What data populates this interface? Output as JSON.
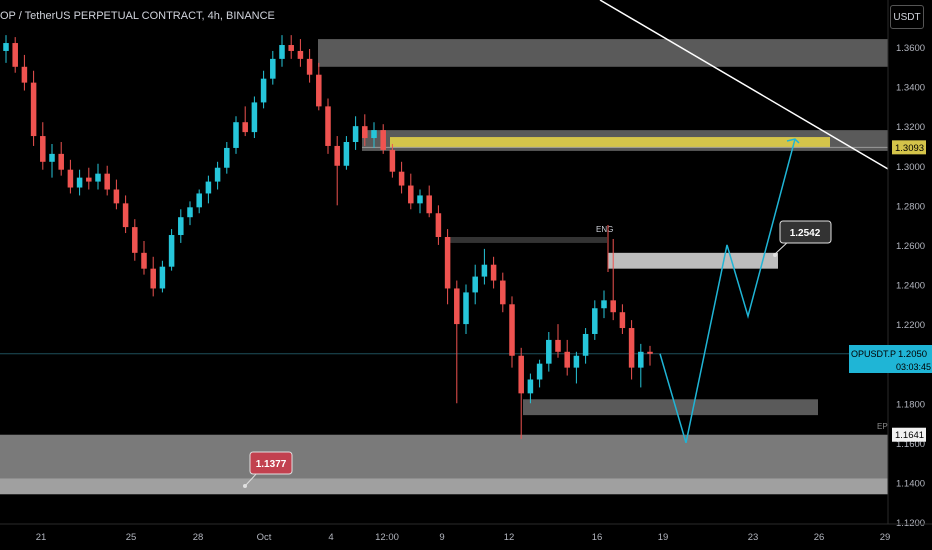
{
  "title": "OP / TetherUS PERPETUAL CONTRACT, 4h, BINANCE",
  "currency_button": "USDT",
  "colors": {
    "bg": "#000000",
    "up": "#26c6da",
    "down": "#ef5350",
    "zone_gray": "#5a5a5a",
    "zone_light": "#bdbdbd",
    "zone_yellow": "#d4c44a",
    "projection": "#1fb5d6",
    "trendline": "#ffffff"
  },
  "chart_data": {
    "type": "candlestick",
    "symbol": "OPUSDT.P",
    "timeframe": "4h",
    "exchange": "BINANCE",
    "ylim": [
      1.116,
      1.366
    ],
    "yticks": [
      "1.3600",
      "1.3400",
      "1.3200",
      "1.3000",
      "1.2800",
      "1.2600",
      "1.2400",
      "1.2200",
      "1.1800",
      "1.1600",
      "1.1400",
      "1.1200"
    ],
    "xticks": [
      "21",
      "25",
      "28",
      "Oct",
      "4",
      "12:00",
      "9",
      "12",
      "16",
      "19",
      "23",
      "26",
      "29"
    ],
    "price_tags": [
      {
        "label": "OPUSDT.P",
        "value": "1.2050",
        "countdown": "03:03:45",
        "price": 1.205
      },
      {
        "label": "",
        "value": "1.3093",
        "price": 1.3093
      },
      {
        "label": "EP",
        "value": "1.1641",
        "price": 1.1641
      }
    ],
    "annotations": [
      {
        "text": "ENG"
      },
      {
        "text": "1.2542",
        "price": 1.2542
      },
      {
        "text": "1.1377",
        "price": 1.1377
      }
    ],
    "zones": [
      {
        "name": "supply-top",
        "from": 1.35,
        "to": 1.364
      },
      {
        "name": "supply-mid",
        "from": 1.3075,
        "to": 1.318
      },
      {
        "name": "yellow-zone",
        "from": 1.309,
        "to": 1.3145
      },
      {
        "name": "eng-block",
        "from": 1.261,
        "to": 1.264
      },
      {
        "name": "light-zone",
        "from": 1.248,
        "to": 1.256
      },
      {
        "name": "demand-mid",
        "from": 1.174,
        "to": 1.182
      },
      {
        "name": "demand-low",
        "from": 1.1395,
        "to": 1.1641
      }
    ],
    "projection_path": [
      1.205,
      1.16,
      1.26,
      1.224,
      1.3135
    ],
    "candles_ohlc": [
      [
        1.358,
        1.366,
        1.352,
        1.362
      ],
      [
        1.362,
        1.365,
        1.347,
        1.35
      ],
      [
        1.35,
        1.356,
        1.338,
        1.342
      ],
      [
        1.342,
        1.348,
        1.31,
        1.315
      ],
      [
        1.315,
        1.322,
        1.298,
        1.302
      ],
      [
        1.302,
        1.311,
        1.294,
        1.306
      ],
      [
        1.306,
        1.312,
        1.295,
        1.298
      ],
      [
        1.298,
        1.303,
        1.286,
        1.289
      ],
      [
        1.289,
        1.298,
        1.285,
        1.294
      ],
      [
        1.294,
        1.299,
        1.288,
        1.292
      ],
      [
        1.292,
        1.301,
        1.288,
        1.296
      ],
      [
        1.296,
        1.3,
        1.285,
        1.288
      ],
      [
        1.288,
        1.293,
        1.278,
        1.281
      ],
      [
        1.281,
        1.285,
        1.266,
        1.269
      ],
      [
        1.269,
        1.273,
        1.252,
        1.256
      ],
      [
        1.256,
        1.262,
        1.245,
        1.248
      ],
      [
        1.248,
        1.254,
        1.234,
        1.238
      ],
      [
        1.238,
        1.252,
        1.236,
        1.249
      ],
      [
        1.249,
        1.268,
        1.247,
        1.265
      ],
      [
        1.265,
        1.278,
        1.261,
        1.274
      ],
      [
        1.274,
        1.282,
        1.27,
        1.279
      ],
      [
        1.279,
        1.288,
        1.276,
        1.286
      ],
      [
        1.286,
        1.295,
        1.281,
        1.292
      ],
      [
        1.292,
        1.302,
        1.288,
        1.299
      ],
      [
        1.299,
        1.312,
        1.296,
        1.309
      ],
      [
        1.309,
        1.325,
        1.306,
        1.322
      ],
      [
        1.322,
        1.33,
        1.315,
        1.317
      ],
      [
        1.317,
        1.335,
        1.314,
        1.332
      ],
      [
        1.332,
        1.348,
        1.329,
        1.344
      ],
      [
        1.344,
        1.358,
        1.341,
        1.354
      ],
      [
        1.354,
        1.366,
        1.35,
        1.361
      ],
      [
        1.361,
        1.366,
        1.354,
        1.358
      ],
      [
        1.358,
        1.364,
        1.35,
        1.354
      ],
      [
        1.354,
        1.359,
        1.342,
        1.346
      ],
      [
        1.346,
        1.352,
        1.328,
        1.33
      ],
      [
        1.33,
        1.334,
        1.306,
        1.31
      ],
      [
        1.31,
        1.315,
        1.28,
        1.3
      ],
      [
        1.3,
        1.315,
        1.298,
        1.312
      ],
      [
        1.312,
        1.325,
        1.308,
        1.32
      ],
      [
        1.32,
        1.326,
        1.31,
        1.314
      ],
      [
        1.314,
        1.322,
        1.309,
        1.318
      ],
      [
        1.318,
        1.321,
        1.306,
        1.308
      ],
      [
        1.308,
        1.311,
        1.294,
        1.297
      ],
      [
        1.297,
        1.302,
        1.286,
        1.29
      ],
      [
        1.29,
        1.296,
        1.278,
        1.281
      ],
      [
        1.281,
        1.288,
        1.276,
        1.285
      ],
      [
        1.285,
        1.29,
        1.274,
        1.276
      ],
      [
        1.276,
        1.28,
        1.26,
        1.264
      ],
      [
        1.264,
        1.268,
        1.23,
        1.238
      ],
      [
        1.238,
        1.242,
        1.18,
        1.22
      ],
      [
        1.22,
        1.24,
        1.215,
        1.236
      ],
      [
        1.236,
        1.25,
        1.23,
        1.244
      ],
      [
        1.244,
        1.258,
        1.24,
        1.25
      ],
      [
        1.25,
        1.254,
        1.238,
        1.242
      ],
      [
        1.242,
        1.246,
        1.226,
        1.23
      ],
      [
        1.23,
        1.234,
        1.198,
        1.204
      ],
      [
        1.204,
        1.208,
        1.162,
        1.185
      ],
      [
        1.185,
        1.195,
        1.18,
        1.192
      ],
      [
        1.192,
        1.202,
        1.188,
        1.2
      ],
      [
        1.2,
        1.216,
        1.196,
        1.212
      ],
      [
        1.212,
        1.22,
        1.203,
        1.206
      ],
      [
        1.206,
        1.212,
        1.194,
        1.198
      ],
      [
        1.198,
        1.206,
        1.19,
        1.204
      ],
      [
        1.204,
        1.218,
        1.2,
        1.215
      ],
      [
        1.215,
        1.232,
        1.212,
        1.228
      ],
      [
        1.228,
        1.237,
        1.223,
        1.232
      ],
      [
        1.232,
        1.263,
        1.222,
        1.226
      ],
      [
        1.226,
        1.23,
        1.215,
        1.218
      ],
      [
        1.218,
        1.222,
        1.192,
        1.198
      ],
      [
        1.198,
        1.21,
        1.188,
        1.206
      ],
      [
        1.206,
        1.209,
        1.199,
        1.205
      ]
    ]
  }
}
